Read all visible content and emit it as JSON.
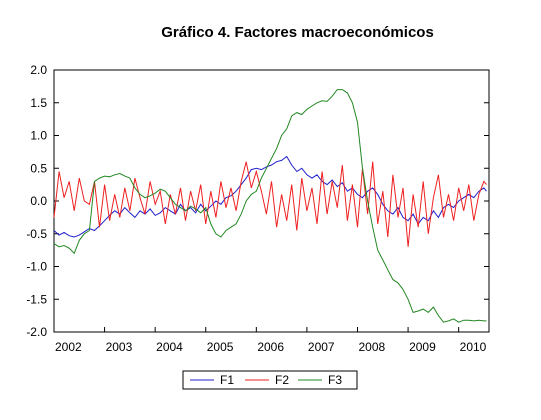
{
  "chart_data": {
    "type": "line",
    "title": "Gráfico 4. Factores macroeconómicos",
    "xlabel": "",
    "ylabel": "",
    "xlim": [
      2002.0,
      2010.6
    ],
    "ylim": [
      -2.0,
      2.0
    ],
    "x_ticks": [
      "2002",
      "2003",
      "2004",
      "2005",
      "2006",
      "2007",
      "2008",
      "2009",
      "2010"
    ],
    "y_ticks": [
      "2.0",
      "1.5",
      "1.0",
      "0.5",
      "0.0",
      "-0.5",
      "-1.0",
      "-1.5",
      "-2.0"
    ],
    "grid": false,
    "legend_position": "bottom-center",
    "series": [
      {
        "name": "F1",
        "color": "#2020cc",
        "x": [
          2002.0,
          2002.1,
          2002.2,
          2002.3,
          2002.4,
          2002.5,
          2002.6,
          2002.7,
          2002.8,
          2002.9,
          2003.0,
          2003.1,
          2003.2,
          2003.3,
          2003.4,
          2003.5,
          2003.6,
          2003.7,
          2003.8,
          2003.9,
          2004.0,
          2004.1,
          2004.2,
          2004.3,
          2004.4,
          2004.5,
          2004.6,
          2004.7,
          2004.8,
          2004.9,
          2005.0,
          2005.1,
          2005.2,
          2005.3,
          2005.4,
          2005.5,
          2005.6,
          2005.7,
          2005.8,
          2005.9,
          2006.0,
          2006.1,
          2006.2,
          2006.3,
          2006.4,
          2006.5,
          2006.6,
          2006.7,
          2006.8,
          2006.9,
          2007.0,
          2007.1,
          2007.2,
          2007.3,
          2007.4,
          2007.5,
          2007.6,
          2007.7,
          2007.8,
          2007.9,
          2008.0,
          2008.1,
          2008.2,
          2008.3,
          2008.4,
          2008.5,
          2008.6,
          2008.7,
          2008.8,
          2008.9,
          2009.0,
          2009.1,
          2009.2,
          2009.3,
          2009.4,
          2009.5,
          2009.6,
          2009.7,
          2009.8,
          2009.9,
          2010.0,
          2010.1,
          2010.2,
          2010.3,
          2010.4,
          2010.5,
          2010.55
        ],
        "y": [
          -0.45,
          -0.52,
          -0.48,
          -0.53,
          -0.55,
          -0.52,
          -0.47,
          -0.42,
          -0.45,
          -0.38,
          -0.3,
          -0.22,
          -0.15,
          -0.2,
          -0.1,
          -0.18,
          -0.25,
          -0.15,
          -0.2,
          -0.12,
          -0.22,
          -0.18,
          -0.1,
          -0.15,
          -0.2,
          -0.05,
          -0.15,
          -0.1,
          -0.18,
          -0.05,
          -0.15,
          -0.08,
          0.0,
          -0.05,
          0.05,
          0.08,
          0.15,
          0.25,
          0.35,
          0.48,
          0.5,
          0.48,
          0.52,
          0.55,
          0.6,
          0.62,
          0.68,
          0.55,
          0.45,
          0.5,
          0.4,
          0.35,
          0.4,
          0.3,
          0.25,
          0.32,
          0.22,
          0.28,
          0.15,
          0.2,
          0.1,
          0.05,
          0.15,
          0.2,
          0.1,
          -0.05,
          -0.15,
          -0.2,
          -0.1,
          -0.25,
          -0.3,
          -0.2,
          -0.35,
          -0.25,
          -0.3,
          -0.15,
          -0.25,
          -0.1,
          -0.05,
          -0.1,
          0.0,
          0.05,
          0.1,
          0.05,
          0.15,
          0.2,
          0.15
        ]
      },
      {
        "name": "F2",
        "color": "#ee2020",
        "x": [
          2002.0,
          2002.1,
          2002.2,
          2002.3,
          2002.4,
          2002.5,
          2002.6,
          2002.7,
          2002.8,
          2002.9,
          2003.0,
          2003.1,
          2003.2,
          2003.3,
          2003.4,
          2003.5,
          2003.6,
          2003.7,
          2003.8,
          2003.9,
          2004.0,
          2004.1,
          2004.2,
          2004.3,
          2004.4,
          2004.5,
          2004.6,
          2004.7,
          2004.8,
          2004.9,
          2005.0,
          2005.1,
          2005.2,
          2005.3,
          2005.4,
          2005.5,
          2005.6,
          2005.7,
          2005.8,
          2005.9,
          2006.0,
          2006.1,
          2006.2,
          2006.3,
          2006.4,
          2006.5,
          2006.6,
          2006.7,
          2006.8,
          2006.9,
          2007.0,
          2007.1,
          2007.2,
          2007.3,
          2007.4,
          2007.5,
          2007.6,
          2007.7,
          2007.8,
          2007.9,
          2008.0,
          2008.1,
          2008.2,
          2008.3,
          2008.4,
          2008.5,
          2008.6,
          2008.7,
          2008.8,
          2008.9,
          2009.0,
          2009.1,
          2009.2,
          2009.3,
          2009.4,
          2009.5,
          2009.6,
          2009.7,
          2009.8,
          2009.9,
          2010.0,
          2010.1,
          2010.2,
          2010.3,
          2010.4,
          2010.5,
          2010.55
        ],
        "y": [
          -0.25,
          0.45,
          0.05,
          0.3,
          -0.15,
          0.35,
          0.0,
          -0.05,
          0.3,
          -0.4,
          0.25,
          -0.3,
          0.1,
          -0.25,
          0.2,
          -0.15,
          0.35,
          0.05,
          -0.2,
          0.3,
          -0.05,
          0.15,
          -0.35,
          0.1,
          -0.2,
          0.2,
          -0.3,
          0.15,
          -0.15,
          0.25,
          -0.35,
          0.15,
          -0.25,
          0.3,
          -0.1,
          0.2,
          -0.15,
          0.3,
          0.6,
          0.2,
          0.45,
          0.15,
          -0.2,
          0.3,
          -0.4,
          0.1,
          -0.3,
          0.25,
          -0.45,
          0.35,
          -0.15,
          0.2,
          -0.35,
          0.45,
          -0.2,
          0.3,
          -0.1,
          0.55,
          -0.3,
          0.25,
          -0.4,
          0.5,
          -0.2,
          0.6,
          -0.35,
          0.15,
          -0.55,
          0.4,
          -0.25,
          0.2,
          -0.7,
          0.1,
          -0.4,
          0.3,
          -0.5,
          0.05,
          0.4,
          -0.25,
          0.1,
          -0.3,
          0.2,
          -0.15,
          0.25,
          -0.3,
          0.1,
          0.3,
          0.25
        ]
      },
      {
        "name": "F3",
        "color": "#228822",
        "x": [
          2002.0,
          2002.1,
          2002.2,
          2002.3,
          2002.4,
          2002.5,
          2002.6,
          2002.7,
          2002.8,
          2002.9,
          2003.0,
          2003.1,
          2003.2,
          2003.3,
          2003.4,
          2003.5,
          2003.6,
          2003.7,
          2003.8,
          2003.9,
          2004.0,
          2004.1,
          2004.2,
          2004.3,
          2004.4,
          2004.5,
          2004.6,
          2004.7,
          2004.8,
          2004.9,
          2005.0,
          2005.1,
          2005.2,
          2005.3,
          2005.4,
          2005.5,
          2005.6,
          2005.7,
          2005.8,
          2005.9,
          2006.0,
          2006.1,
          2006.2,
          2006.3,
          2006.4,
          2006.5,
          2006.6,
          2006.7,
          2006.8,
          2006.9,
          2007.0,
          2007.1,
          2007.2,
          2007.3,
          2007.4,
          2007.5,
          2007.6,
          2007.7,
          2007.8,
          2007.9,
          2008.0,
          2008.1,
          2008.2,
          2008.3,
          2008.4,
          2008.5,
          2008.6,
          2008.7,
          2008.8,
          2008.9,
          2009.0,
          2009.1,
          2009.2,
          2009.3,
          2009.4,
          2009.5,
          2009.6,
          2009.7,
          2009.8,
          2009.9,
          2010.0,
          2010.1,
          2010.2,
          2010.3,
          2010.4,
          2010.5,
          2010.55
        ],
        "y": [
          -0.65,
          -0.7,
          -0.68,
          -0.72,
          -0.8,
          -0.6,
          -0.5,
          -0.45,
          0.3,
          0.35,
          0.38,
          0.37,
          0.4,
          0.42,
          0.38,
          0.35,
          0.2,
          0.1,
          0.05,
          0.08,
          0.12,
          0.18,
          0.15,
          0.05,
          -0.05,
          -0.1,
          -0.15,
          -0.08,
          -0.12,
          -0.18,
          -0.1,
          -0.35,
          -0.5,
          -0.55,
          -0.45,
          -0.4,
          -0.35,
          -0.2,
          0.0,
          0.1,
          0.15,
          0.35,
          0.5,
          0.65,
          0.8,
          1.0,
          1.1,
          1.3,
          1.35,
          1.32,
          1.4,
          1.45,
          1.5,
          1.53,
          1.52,
          1.6,
          1.7,
          1.7,
          1.65,
          1.5,
          1.2,
          0.5,
          0.0,
          -0.4,
          -0.75,
          -0.9,
          -1.05,
          -1.2,
          -1.25,
          -1.35,
          -1.5,
          -1.7,
          -1.68,
          -1.65,
          -1.7,
          -1.62,
          -1.75,
          -1.85,
          -1.83,
          -1.8,
          -1.85,
          -1.82,
          -1.82,
          -1.83,
          -1.82,
          -1.83,
          -1.83
        ]
      }
    ]
  }
}
